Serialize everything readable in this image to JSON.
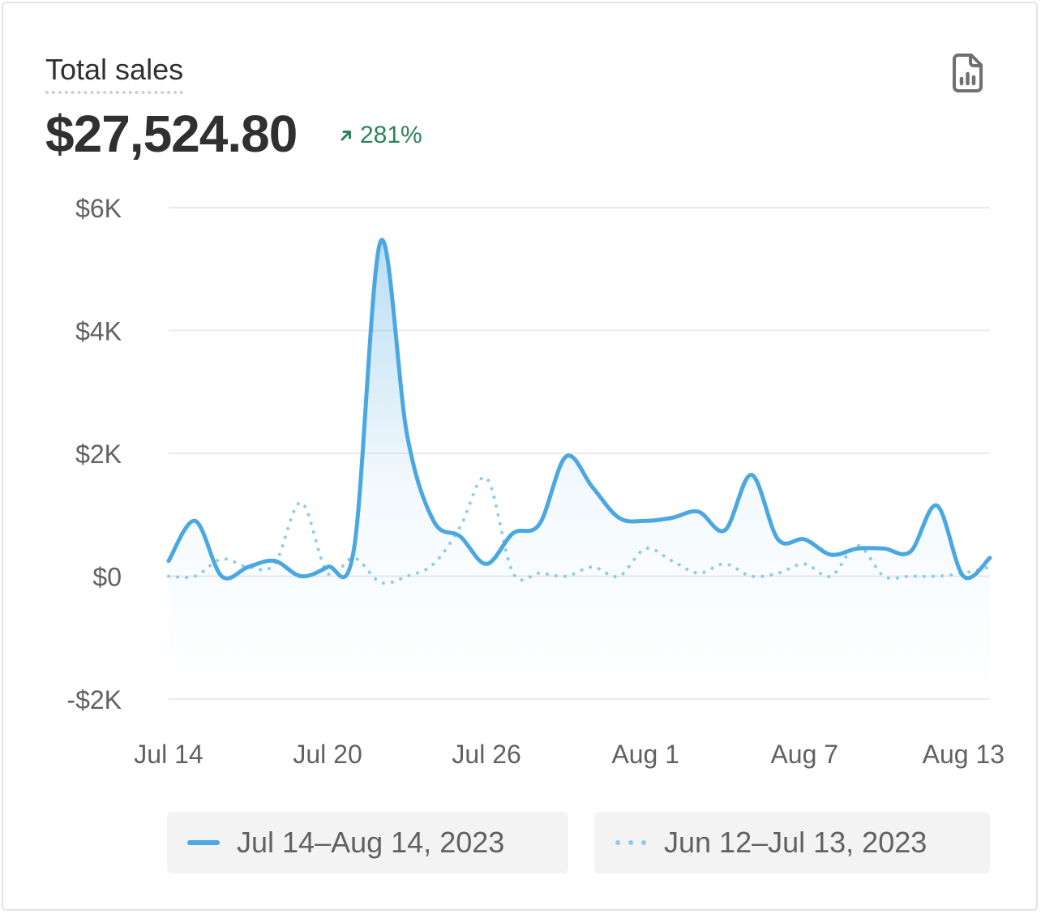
{
  "card": {
    "title": "Total sales",
    "value": "$27,524.80",
    "trend": {
      "direction": "up",
      "label": "281%",
      "color": "#29845a"
    },
    "report_icon": "file-chart-icon"
  },
  "colors": {
    "current_series": "#4ba7e2",
    "previous_series": "#8fcbee",
    "grid": "#ebebeb",
    "axis_text": "#616161"
  },
  "chart_data": {
    "type": "line",
    "title": "Total sales",
    "x_tick_labels": [
      "Jul 14",
      "Jul 20",
      "Jul 26",
      "Aug 1",
      "Aug 7",
      "Aug 13"
    ],
    "y_tick_labels": [
      "$6K",
      "$4K",
      "$2K",
      "$0",
      "-$2K"
    ],
    "y_ticks": [
      6000,
      4000,
      2000,
      0,
      -2000
    ],
    "ylim": [
      -2000,
      6000
    ],
    "grid": true,
    "legend_position": "bottom",
    "series": [
      {
        "name": "Jul 14–Aug 14, 2023",
        "style": "solid",
        "area_fill": true,
        "values": [
          250,
          900,
          0,
          150,
          250,
          0,
          150,
          450,
          5450,
          2300,
          900,
          650,
          200,
          700,
          850,
          1950,
          1450,
          950,
          900,
          950,
          1050,
          750,
          1650,
          600,
          600,
          350,
          450,
          450,
          400,
          1150,
          0,
          300
        ]
      },
      {
        "name": "Jun 12–Jul 13, 2023",
        "style": "dotted",
        "area_fill": false,
        "values": [
          0,
          0,
          280,
          150,
          200,
          1200,
          50,
          300,
          -100,
          0,
          200,
          800,
          1600,
          50,
          50,
          0,
          150,
          0,
          450,
          250,
          50,
          200,
          0,
          50,
          200,
          0,
          500,
          0,
          0,
          0,
          50,
          150
        ]
      }
    ]
  },
  "legend": {
    "current_label": "Jul 14–Aug 14, 2023",
    "previous_label": "Jun 12–Jul 13, 2023"
  }
}
